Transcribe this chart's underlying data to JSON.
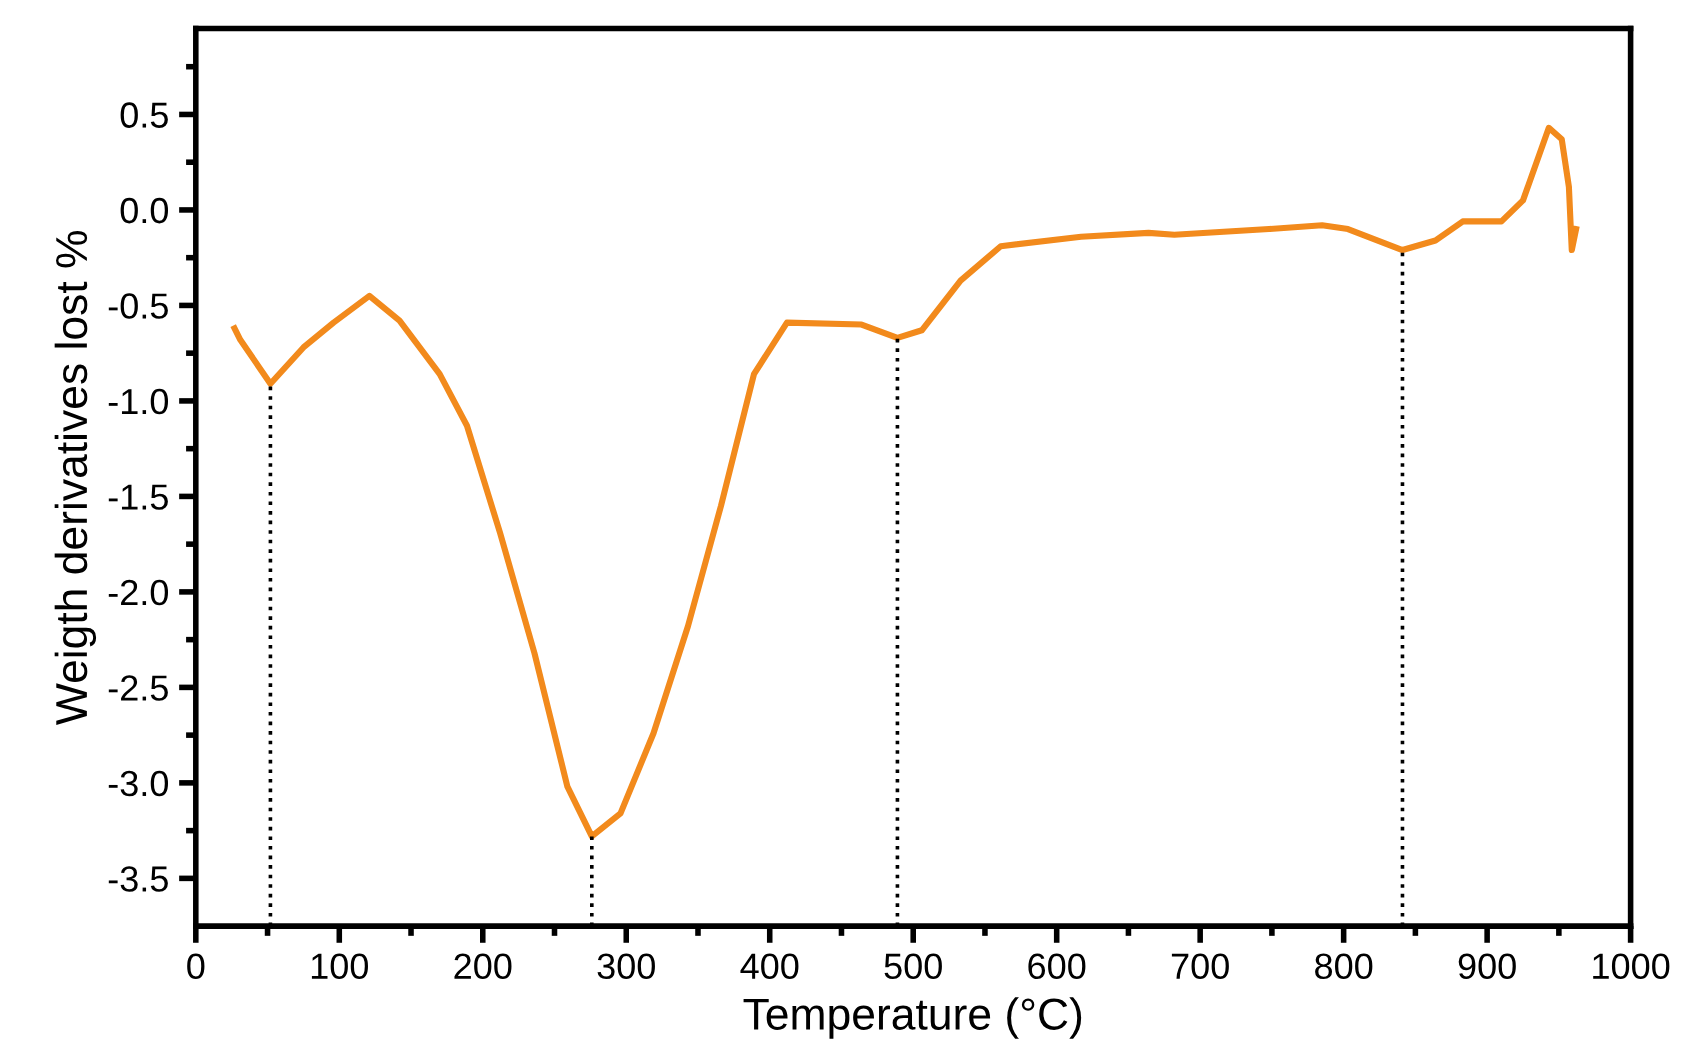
{
  "chart_data": {
    "type": "line",
    "xlabel": "Temperature (°C)",
    "ylabel": "Weigth derivatives lost %",
    "xlim": [
      0,
      1000
    ],
    "ylim": [
      -3.75,
      0.95
    ],
    "xticks": [
      0,
      {
        "value": 50,
        "label": null
      },
      100,
      {
        "value": 150,
        "label": null
      },
      200,
      {
        "value": 250,
        "label": null
      },
      300,
      {
        "value": 350,
        "label": null
      },
      400,
      {
        "value": 450,
        "label": null
      },
      500,
      {
        "value": 550,
        "label": null
      },
      600,
      {
        "value": 650,
        "label": null
      },
      700,
      {
        "value": 750,
        "label": null
      },
      800,
      {
        "value": 850,
        "label": null
      },
      900,
      {
        "value": 950,
        "label": null
      },
      1000
    ],
    "yticks": [
      -3.5,
      {
        "value": -3.25,
        "label": null
      },
      {
        "value": -3.0,
        "label": "-3.0"
      },
      {
        "value": -2.75,
        "label": null
      },
      -2.5,
      {
        "value": -2.25,
        "label": null
      },
      {
        "value": -2.0,
        "label": "-2.0"
      },
      {
        "value": -1.75,
        "label": null
      },
      -1.5,
      {
        "value": -1.25,
        "label": null
      },
      {
        "value": -1.0,
        "label": "-1.0"
      },
      {
        "value": -0.75,
        "label": null
      },
      -0.5,
      {
        "value": -0.25,
        "label": null
      },
      {
        "value": 0.0,
        "label": "0.0"
      },
      {
        "value": 0.25,
        "label": null
      },
      0.5,
      {
        "value": 0.75,
        "label": null
      }
    ],
    "grid": false,
    "marker": "none",
    "line_style": "solid",
    "series": [
      {
        "color": "#f28a1c",
        "x": [
          27,
          31,
          52,
          75,
          96,
          121,
          142,
          170,
          189,
          212,
          236,
          259,
          276,
          296,
          319,
          343,
          366,
          389,
          412,
          464,
          489,
          506,
          533,
          561,
          617,
          664,
          682,
          748,
          785,
          803,
          841,
          864,
          883,
          910,
          925,
          943,
          952,
          957,
          959,
          962
        ],
        "values": [
          -0.62,
          -0.68,
          -0.91,
          -0.72,
          -0.59,
          -0.45,
          -0.58,
          -0.86,
          -1.13,
          -1.69,
          -2.32,
          -3.02,
          -3.28,
          -3.16,
          -2.74,
          -2.18,
          -1.55,
          -0.86,
          -0.59,
          -0.6,
          -0.67,
          -0.63,
          -0.37,
          -0.19,
          -0.14,
          -0.12,
          -0.13,
          -0.1,
          -0.08,
          -0.1,
          -0.21,
          -0.16,
          -0.06,
          -0.06,
          0.05,
          0.43,
          0.37,
          0.12,
          -0.21,
          -0.1
        ]
      }
    ],
    "ref_lines": [
      {
        "axis": "x",
        "value": 52,
        "color": "#000000",
        "line_style": "dotted"
      },
      {
        "axis": "x",
        "value": 276,
        "color": "#000000",
        "line_style": "dotted"
      },
      {
        "axis": "x",
        "value": 489,
        "color": "#000000",
        "line_style": "dotted"
      },
      {
        "axis": "x",
        "value": 841,
        "color": "#000000",
        "line_style": "dotted"
      }
    ]
  }
}
